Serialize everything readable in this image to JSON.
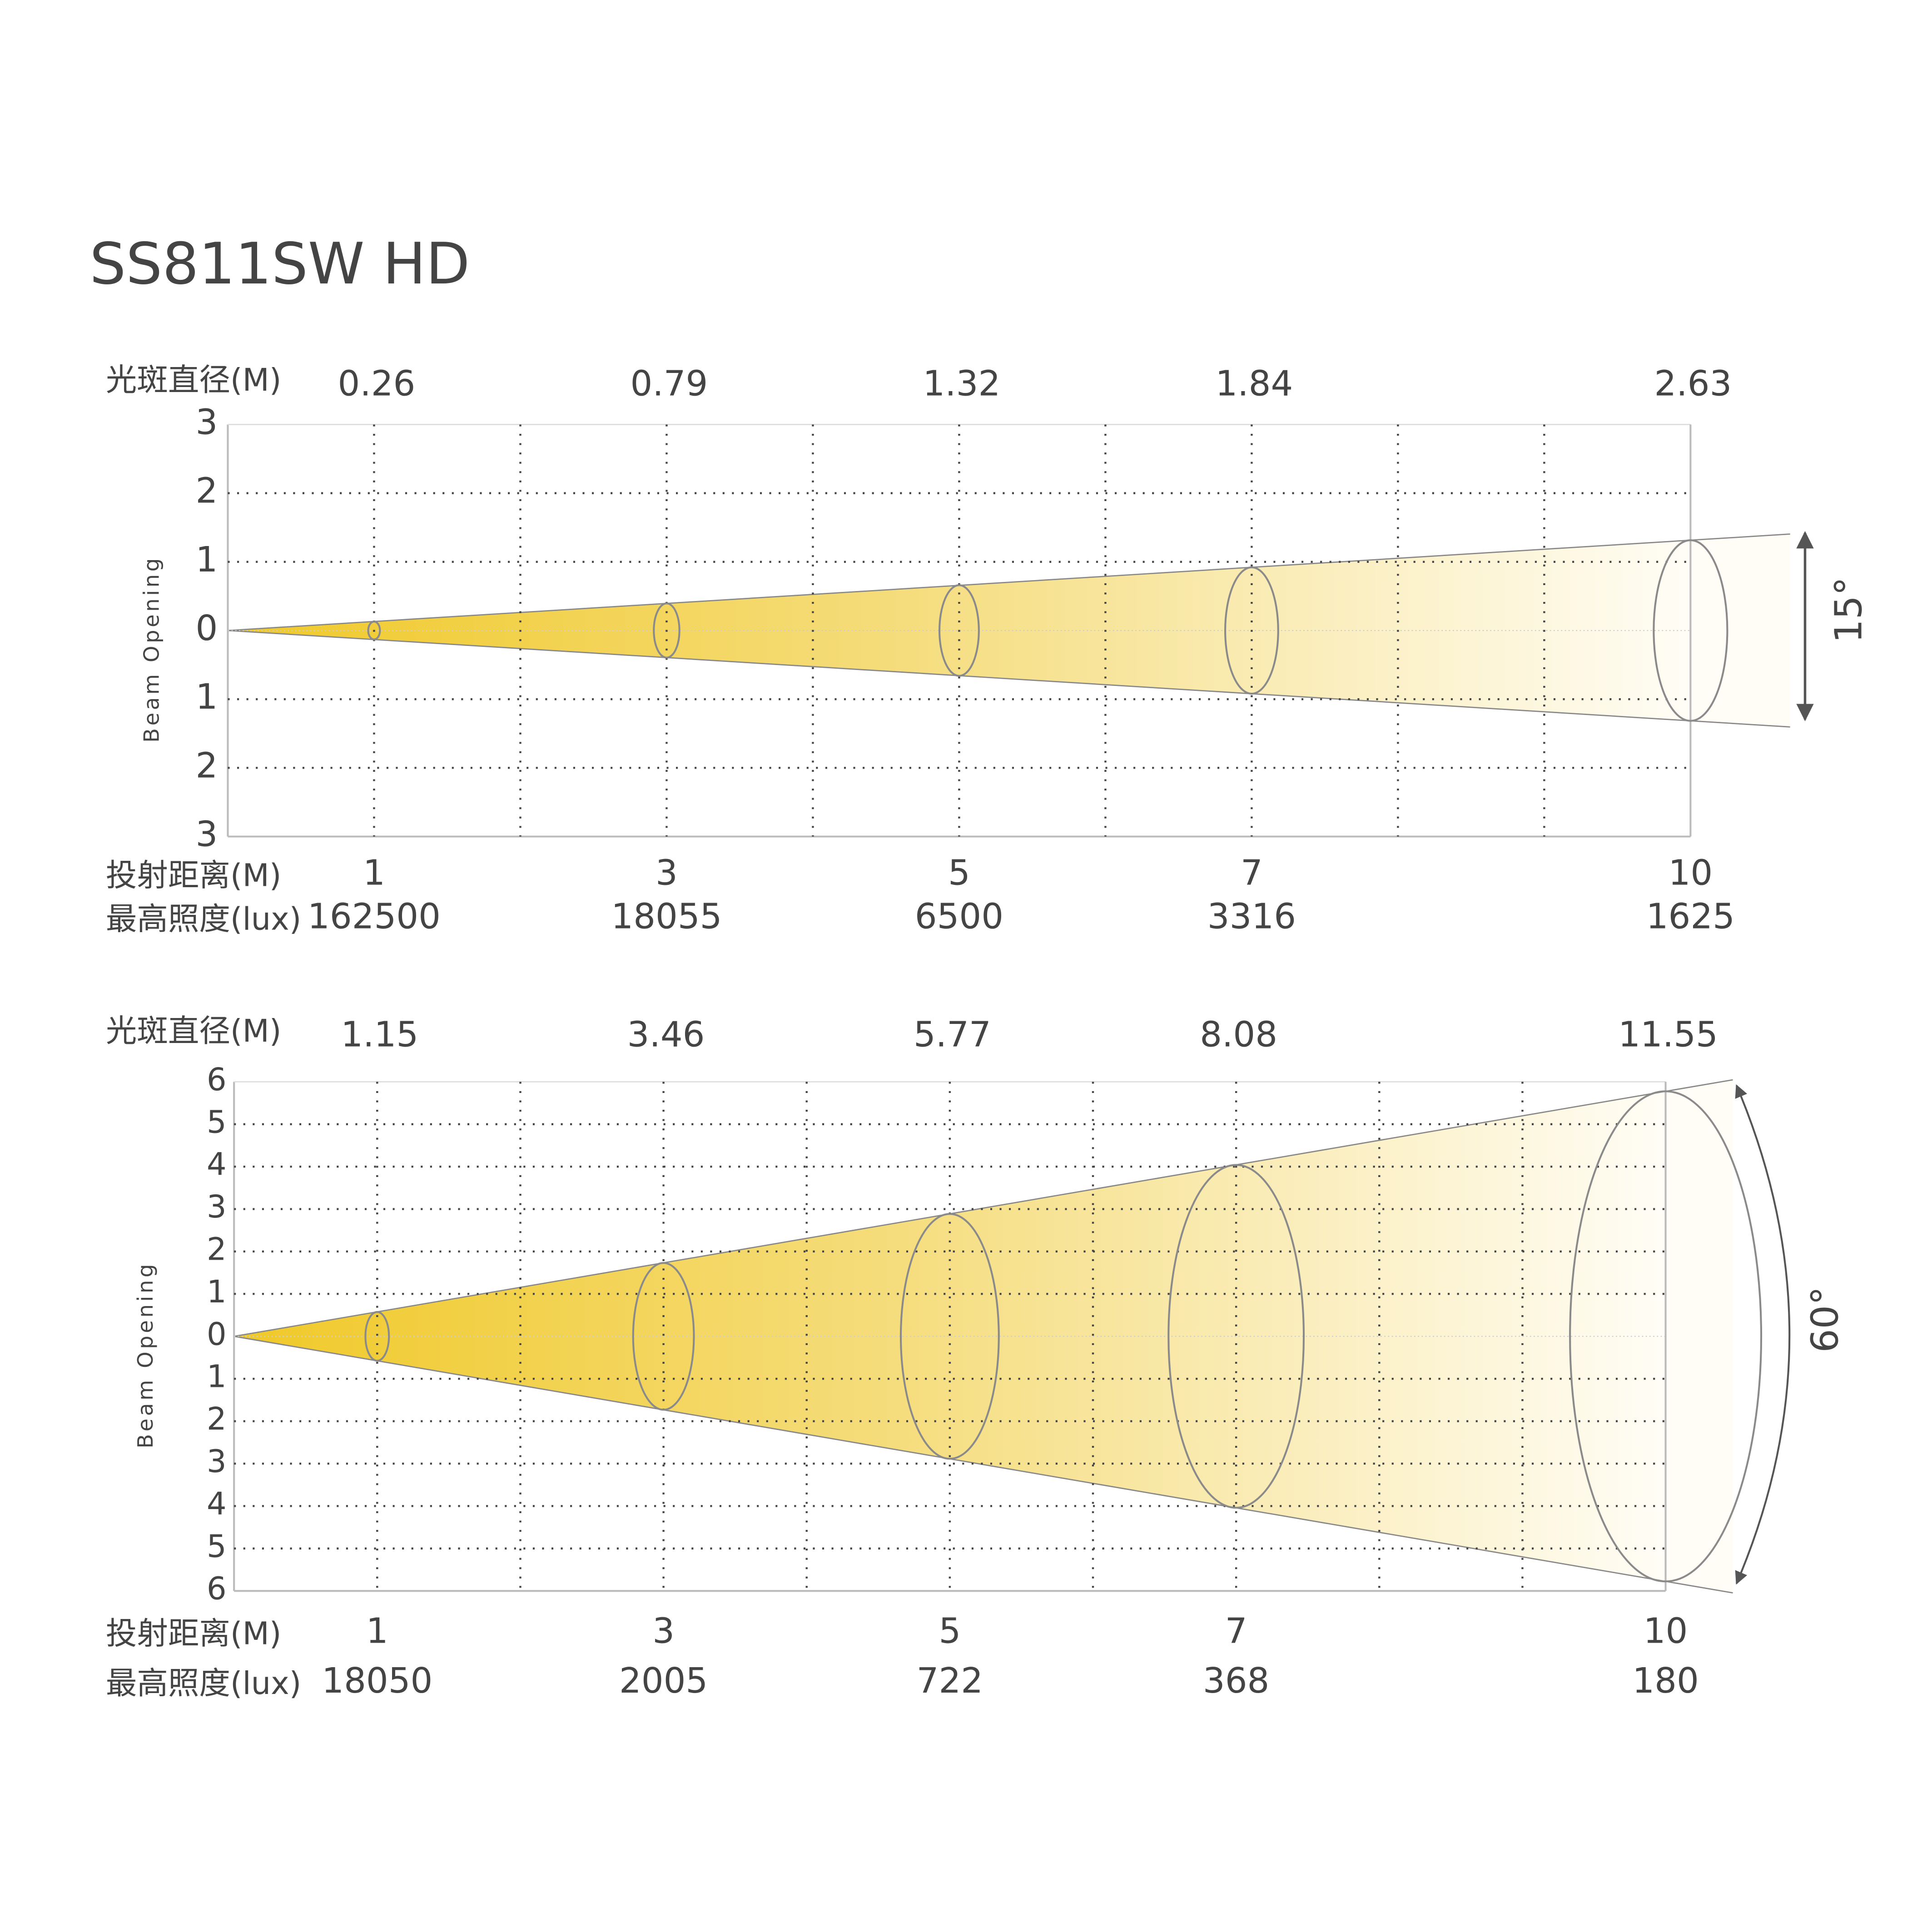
{
  "title": "SS811SW HD",
  "chart_data": [
    {
      "type": "beam",
      "diameter_label": "光斑直径(M)",
      "distance_label": "投射距离(M)",
      "lux_label": "最高照度(lux)",
      "y_label": "Beam Opening",
      "angle_label": "15°",
      "x": [
        1,
        3,
        5,
        7,
        10
      ],
      "diameters": [
        0.26,
        0.79,
        1.32,
        1.84,
        2.63
      ],
      "lux": [
        162500,
        18055,
        6500,
        3316,
        1625
      ],
      "xlim": [
        0,
        10
      ],
      "xgrid": [
        1,
        2,
        3,
        4,
        5,
        6,
        7,
        8,
        9,
        10
      ],
      "ylim": [
        -3,
        3
      ],
      "yticks": [
        {
          "value": 3,
          "label": "3"
        },
        {
          "value": 2,
          "label": "2"
        },
        {
          "value": 1,
          "label": "1"
        },
        0,
        {
          "value": -1,
          "label": "1"
        },
        {
          "value": -2,
          "label": "2"
        },
        {
          "value": -3,
          "label": "3"
        }
      ]
    },
    {
      "type": "beam",
      "diameter_label": "光斑直径(M)",
      "distance_label": "投射距离(M)",
      "lux_label": "最高照度(lux)",
      "y_label": "Beam Opening",
      "angle_label": "60°",
      "x": [
        1,
        3,
        5,
        7,
        10
      ],
      "diameters": [
        1.15,
        3.46,
        5.77,
        8.08,
        11.55
      ],
      "lux": [
        18050,
        2005,
        722,
        368,
        180
      ],
      "xlim": [
        0,
        10
      ],
      "xgrid": [
        1,
        2,
        3,
        4,
        5,
        6,
        7,
        8,
        9,
        10
      ],
      "ylim": [
        -6,
        6
      ],
      "yticks": [
        {
          "value": 6,
          "label": "6"
        },
        {
          "value": 5,
          "label": "5"
        },
        {
          "value": 4,
          "label": "4"
        },
        {
          "value": 3,
          "label": "3"
        },
        {
          "value": 2,
          "label": "2"
        },
        {
          "value": 1,
          "label": "1"
        },
        0,
        {
          "value": -1,
          "label": "1"
        },
        {
          "value": -2,
          "label": "2"
        },
        {
          "value": -3,
          "label": "3"
        },
        {
          "value": -4,
          "label": "4"
        },
        {
          "value": -5,
          "label": "5"
        },
        {
          "value": -6,
          "label": "6"
        }
      ]
    }
  ]
}
